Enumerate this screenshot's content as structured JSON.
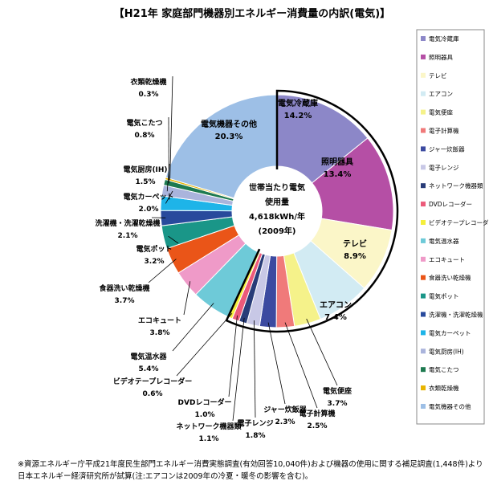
{
  "chart_data": {
    "type": "pie",
    "title": "【H21年 家庭部門機器別エネルギー消費量の内訳(電気)】",
    "center": {
      "line1": "世帯当たり電気",
      "line2": "使用量",
      "line3": "4,618kWh/年",
      "line4": "(2009年)"
    },
    "slices": [
      {
        "name": "電気冷蔵庫",
        "value": 14.2,
        "display": "14.2%",
        "color": "#8c87c8"
      },
      {
        "name": "照明器具",
        "value": 13.4,
        "display": "13.4%",
        "color": "#b54fa5"
      },
      {
        "name": "テレビ",
        "value": 8.9,
        "display": "8.9%",
        "color": "#fbf6c8"
      },
      {
        "name": "エアコン",
        "value": 7.4,
        "display": "7.4%",
        "color": "#d2ebf3"
      },
      {
        "name": "電気便座",
        "value": 3.7,
        "display": "3.7%",
        "color": "#f5f28a"
      },
      {
        "name": "電子計算機",
        "value": 2.5,
        "display": "2.5%",
        "color": "#f07a7a"
      },
      {
        "name": "ジャー炊飯器",
        "value": 2.3,
        "display": "2.3%",
        "color": "#3c4aa0"
      },
      {
        "name": "電子レンジ",
        "value": 1.8,
        "display": "1.8%",
        "color": "#c8c8e6"
      },
      {
        "name": "ネットワーク機器類",
        "value": 1.1,
        "display": "1.1%",
        "color": "#283c78"
      },
      {
        "name": "DVDレコーダー",
        "value": 1.0,
        "display": "1.0%",
        "color": "#ec5a7a"
      },
      {
        "name": "ビデオテープレコーダー",
        "value": 0.6,
        "display": "0.6%",
        "color": "#f5ef3c"
      },
      {
        "name": "電気温水器",
        "value": 5.4,
        "display": "5.4%",
        "color": "#6ecad8"
      },
      {
        "name": "エコキュート",
        "value": 3.8,
        "display": "3.8%",
        "color": "#ef9ac8"
      },
      {
        "name": "食器洗い乾燥機",
        "value": 3.7,
        "display": "3.7%",
        "color": "#ea5518"
      },
      {
        "name": "電気ポット",
        "value": 3.2,
        "display": "3.2%",
        "color": "#1a9688"
      },
      {
        "name": "洗濯機・洗濯乾燥機",
        "value": 2.1,
        "display": "2.1%",
        "color": "#284a9c"
      },
      {
        "name": "電気カーペット",
        "value": 2.0,
        "display": "2.0%",
        "color": "#1eb4e8"
      },
      {
        "name": "電気厨房(IH)",
        "value": 1.5,
        "display": "1.5%",
        "color": "#aab4dc"
      },
      {
        "name": "電気こたつ",
        "value": 0.8,
        "display": "0.8%",
        "color": "#1e7a50"
      },
      {
        "name": "衣類乾燥機",
        "value": 0.3,
        "display": "0.3%",
        "color": "#e8b400"
      },
      {
        "name": "電気機器その他",
        "value": 20.3,
        "display": "20.3%",
        "color": "#9dbfe6"
      }
    ],
    "legend_position": "right",
    "legend": [
      "電気冷蔵庫",
      "照明器具",
      "テレビ",
      "エアコン",
      "電気便座",
      "電子計算機",
      "ジャー炊飯器",
      "電子レンジ",
      "ネットワーク機器類",
      "DVDレコーダー",
      "ビデオテープレコーダー",
      "電気温水器",
      "エコキュート",
      "食器洗い乾燥機",
      "電気ポット",
      "洗濯機・洗濯乾燥機",
      "電気カーペット",
      "電気厨房(IH)",
      "電気こたつ",
      "衣類乾燥機",
      "電気機器その他"
    ]
  },
  "footnote": {
    "line1": "※資源エネルギー庁平成21年度民生部門エネルギー消費実態調査(有効回答10,040件)および機器の使用に関する補足調査(1,448件)より",
    "line2": "日本エネルギー経済研究所が試算(注:エアコンは2009年の冷夏・暖冬の影響を含む)。"
  }
}
